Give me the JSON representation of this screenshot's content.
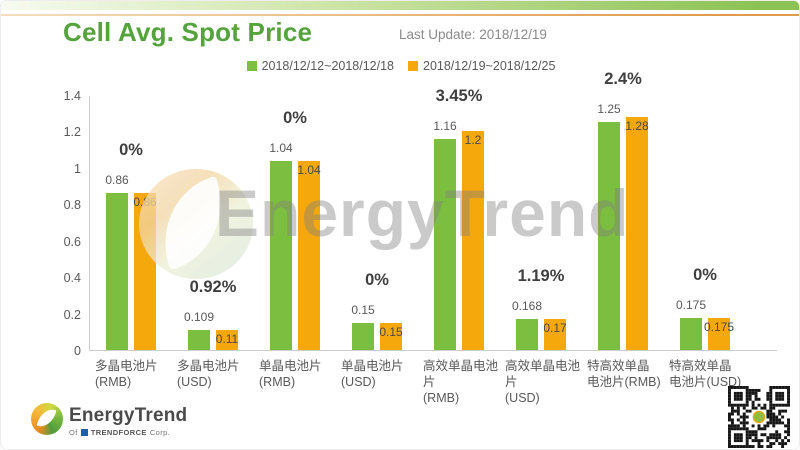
{
  "header": {
    "title": "Cell Avg. Spot Price",
    "last_update": "Last Update: 2018/12/19"
  },
  "legend": [
    {
      "label": "2018/12/12~2018/12/18",
      "color": "#7cbe3f"
    },
    {
      "label": "2018/12/19~2018/12/25",
      "color": "#f5a80c"
    }
  ],
  "chart_data": {
    "type": "bar",
    "title": "Cell Avg. Spot Price",
    "xlabel": "",
    "ylabel": "",
    "ylim": [
      0,
      1.4
    ],
    "yticks": [
      1.4,
      1.2,
      1,
      0.8,
      0.6,
      0.4,
      0.2,
      0
    ],
    "grid": false,
    "legend_position": "top",
    "categories": [
      [
        "多晶电池片",
        "(RMB)"
      ],
      [
        "多晶电池片",
        "(USD)"
      ],
      [
        "单晶电池片",
        "(RMB)"
      ],
      [
        "单晶电池片",
        "(USD)"
      ],
      [
        "高效单晶电池片",
        "(RMB)"
      ],
      [
        "高效单晶电池片",
        "(USD)"
      ],
      [
        "特高效单晶",
        "电池片(RMB)"
      ],
      [
        "特高效单晶",
        "电池片(USD)"
      ]
    ],
    "series": [
      {
        "name": "2018/12/12~2018/12/18",
        "color": "#7cbe3f",
        "values": [
          0.86,
          0.109,
          1.04,
          0.15,
          1.16,
          0.168,
          1.25,
          0.175
        ]
      },
      {
        "name": "2018/12/19~2018/12/25",
        "color": "#f5a80c",
        "values": [
          0.86,
          0.11,
          1.04,
          0.15,
          1.2,
          0.17,
          1.28,
          0.175
        ]
      }
    ],
    "change_labels": [
      "0%",
      "0.92%",
      "0%",
      "0%",
      "3.45%",
      "1.19%",
      "2.4%",
      "0%"
    ]
  },
  "watermark": {
    "text": "EnergyTrend"
  },
  "footer": {
    "brand": "EnergyTrend",
    "subbrand_of": "Of",
    "subbrand_name": "TRENDFORCE",
    "subbrand_suffix": "Corp."
  }
}
